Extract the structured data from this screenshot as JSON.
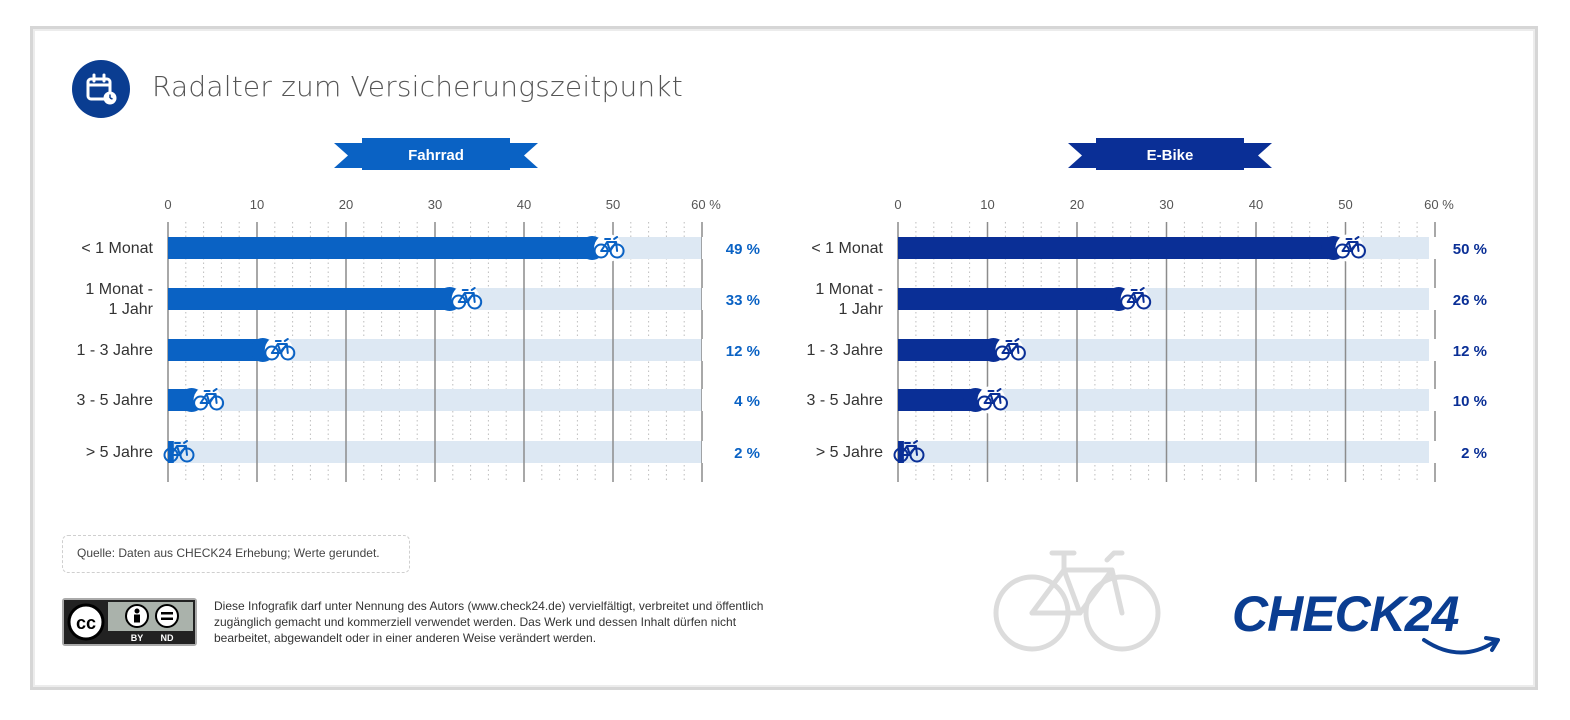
{
  "header": {
    "title": "Radalter zum Versicherungszeitpunkt",
    "icon": "calendar-clock-icon"
  },
  "colors": {
    "fahrrad": "#0a62c4",
    "ebike": "#0a2f96",
    "track": "#dde8f3",
    "icon_bg": "#0a3d91"
  },
  "chart_data": [
    {
      "type": "bar",
      "orientation": "horizontal",
      "title": "Fahrrad",
      "categories": [
        "< 1 Monat",
        "1 Monat - 1 Jahr",
        "1 - 3 Jahre",
        "3 - 5 Jahre",
        ">  5 Jahre"
      ],
      "category_lines": [
        [
          "< 1 Monat"
        ],
        [
          "1 Monat -",
          "1 Jahr"
        ],
        [
          "1 - 3 Jahre"
        ],
        [
          "3 - 5 Jahre"
        ],
        [
          ">  5 Jahre"
        ]
      ],
      "values": [
        49,
        33,
        12,
        4,
        2
      ],
      "value_labels": [
        "49 %",
        "33 %",
        "12 %",
        "4 %",
        "2 %"
      ],
      "xlim": [
        0,
        60
      ],
      "xticks": [
        "0",
        "10",
        "20",
        "30",
        "40",
        "50",
        "60 %"
      ],
      "grid": true
    },
    {
      "type": "bar",
      "orientation": "horizontal",
      "title": "E-Bike",
      "categories": [
        "< 1 Monat",
        "1 Monat - 1 Jahr",
        "1 - 3 Jahre",
        "3 - 5 Jahre",
        ">  5 Jahre"
      ],
      "category_lines": [
        [
          "< 1 Monat"
        ],
        [
          "1 Monat -",
          "1 Jahr"
        ],
        [
          "1 - 3 Jahre"
        ],
        [
          "3 - 5 Jahre"
        ],
        [
          ">  5 Jahre"
        ]
      ],
      "values": [
        50,
        26,
        12,
        10,
        2
      ],
      "value_labels": [
        "50 %",
        "26 %",
        "12 %",
        "10 %",
        "2 %"
      ],
      "xlim": [
        0,
        60
      ],
      "xticks": [
        "0",
        "10",
        "20",
        "30",
        "40",
        "50",
        "60 %"
      ],
      "grid": true
    }
  ],
  "source": {
    "text": "Quelle: Daten aus CHECK24 Erhebung; Werte gerundet."
  },
  "license": {
    "text": "Diese Infografik darf unter Nennung des Autors (www.check24.de) vervielfältigt, verbreitet und öffentlich zugänglich gemacht und kommerziell verwendet werden. Das Werk und dessen Inhalt dürfen nicht bearbeitet, abgewandelt oder in einer anderen Weise verändert werden.",
    "badge": [
      "cc",
      "BY",
      "ND"
    ]
  },
  "brand": {
    "logo_text": "CHECK24"
  }
}
